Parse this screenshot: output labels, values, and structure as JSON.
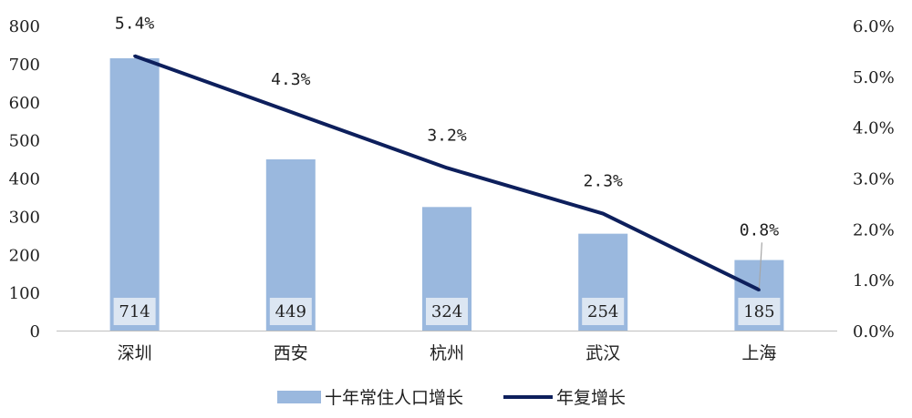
{
  "chart_data": {
    "type": "bar",
    "categories": [
      "深圳",
      "西安",
      "杭州",
      "武汉",
      "上海"
    ],
    "series": [
      {
        "name": "十年常住人口增长",
        "type": "bar",
        "axis": "left",
        "values": [
          714,
          449,
          324,
          254,
          185
        ],
        "labels": [
          "714",
          "449",
          "324",
          "254",
          "185"
        ],
        "color": "#9ab8de"
      },
      {
        "name": "年复增长",
        "type": "line",
        "axis": "right",
        "values": [
          5.4,
          4.3,
          3.2,
          2.3,
          0.8
        ],
        "labels": [
          "5.4%",
          "4.3%",
          "3.2%",
          "2.3%",
          "0.8%"
        ],
        "color": "#0d1f5c"
      }
    ],
    "y_left": {
      "ylim": [
        0,
        800
      ],
      "ticks": [
        0,
        100,
        200,
        300,
        400,
        500,
        600,
        700,
        800
      ],
      "tick_labels": [
        "0",
        "100",
        "200",
        "300",
        "400",
        "500",
        "600",
        "700",
        "800"
      ]
    },
    "y_right": {
      "ylim": [
        0,
        6
      ],
      "ticks": [
        0,
        1,
        2,
        3,
        4,
        5,
        6
      ],
      "tick_labels": [
        "0.0%",
        "1.0%",
        "2.0%",
        "3.0%",
        "4.0%",
        "5.0%",
        "6.0%"
      ]
    },
    "grid": false,
    "legend": "bottom",
    "colors": {
      "bar": "#9ab8de",
      "line": "#0d1f5c",
      "axis": "#bfbfbf",
      "bar_label_bg": "#dce6f2",
      "leader_line": "#a6a6a6"
    },
    "title": "",
    "xlabel": "",
    "ylabel": ""
  }
}
